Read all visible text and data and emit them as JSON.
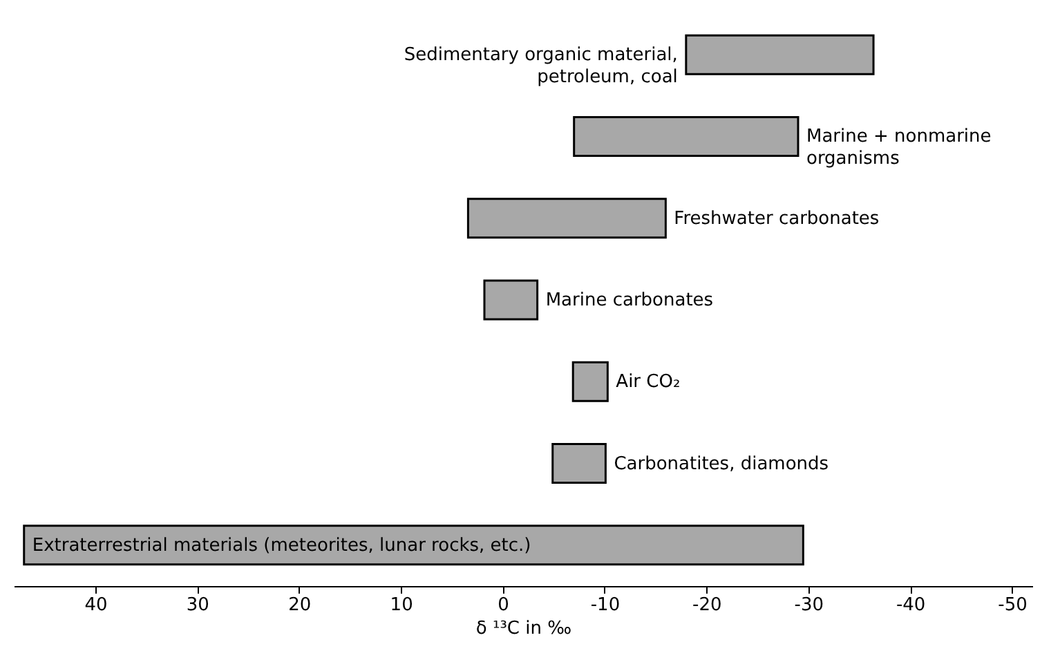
{
  "chart_data": {
    "type": "bar",
    "orientation": "horizontal",
    "categories": [
      "Sedimentary organic material, petroleum, coal",
      "Marine + nonmarine organisms",
      "Freshwater carbonates",
      "Marine carbonates",
      "Air CO₂",
      "Carbonatites, diamonds",
      "Extraterrestrial materials (meteorites, lunar rocks, etc.)"
    ],
    "base": [
      -18,
      -7,
      3.4,
      1.8,
      -6.9,
      -4.9,
      47
    ],
    "values": [
      -18.4,
      -22,
      -19.4,
      -5.2,
      -3.4,
      -5.2,
      -76.5
    ],
    "color": "#a8a8a8",
    "xlim": [
      48,
      -52
    ],
    "xticks": [
      40,
      30,
      20,
      10,
      0,
      -10,
      -20,
      -30,
      -40,
      -50
    ],
    "xlabel": "δ ¹³C in ‰",
    "grid": false,
    "tick_labels": "x"
  }
}
